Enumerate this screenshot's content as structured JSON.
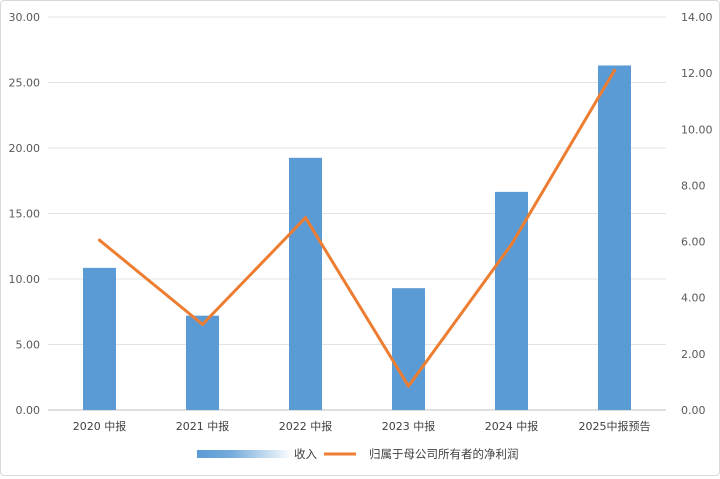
{
  "chart_data": {
    "type": "bar",
    "categories": [
      "2020 中报",
      "2021 中报",
      "2022 中报",
      "2023 中报",
      "2024 中报",
      "2025中报预告"
    ],
    "series": [
      {
        "name": "收入",
        "type": "bar",
        "axis": "left",
        "color": "#5b9bd5",
        "values": [
          10.85,
          7.2,
          19.25,
          9.3,
          16.65,
          26.3
        ]
      },
      {
        "name": "归属于母公司所有者的净利润",
        "type": "line",
        "axis": "right",
        "color": "#ed7d31",
        "values": [
          6.05,
          3.05,
          6.85,
          0.85,
          5.9,
          12.1
        ]
      }
    ],
    "y_left": {
      "min": 0,
      "max": 30,
      "step": 5,
      "ticks": [
        "0.00",
        "5.00",
        "10.00",
        "15.00",
        "20.00",
        "25.00",
        "30.00"
      ]
    },
    "y_right": {
      "min": 0,
      "max": 14,
      "step": 2,
      "ticks": [
        "0.00",
        "2.00",
        "4.00",
        "6.00",
        "8.00",
        "10.00",
        "12.00",
        "14.00"
      ]
    },
    "grid": true,
    "legend_position": "bottom"
  }
}
